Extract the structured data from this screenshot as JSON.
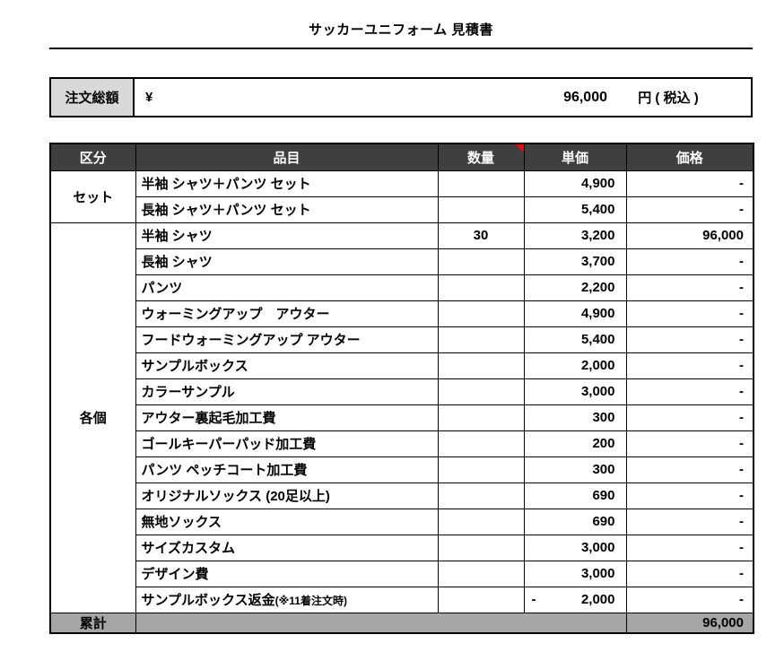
{
  "title": "サッカーユニフォーム 見積書",
  "summary": {
    "label": "注文総額",
    "currency": "¥",
    "amount": "96,000",
    "suffix": "円 ( 税込 )"
  },
  "table": {
    "headers": {
      "category": "区分",
      "item": "品目",
      "qty": "数量",
      "unit_price": "単価",
      "price": "価格"
    },
    "comment_marker_on": "数量",
    "groups": [
      {
        "label": "セット",
        "rows": [
          {
            "item": "半袖 シャツ＋パンツ セット",
            "qty": "",
            "unit_price": "4,900",
            "price": "-"
          },
          {
            "item": "長袖 シャツ＋パンツ セット",
            "qty": "",
            "unit_price": "5,400",
            "price": "-"
          }
        ]
      },
      {
        "label": "各個",
        "rows": [
          {
            "item": "半袖 シャツ",
            "qty": "30",
            "unit_price": "3,200",
            "price": "96,000"
          },
          {
            "item": "長袖 シャツ",
            "qty": "",
            "unit_price": "3,700",
            "price": "-"
          },
          {
            "item": "パンツ",
            "qty": "",
            "unit_price": "2,200",
            "price": "-"
          },
          {
            "item": "ウォーミングアップ　アウター",
            "qty": "",
            "unit_price": "4,900",
            "price": "-"
          },
          {
            "item": "フードウォーミングアップ アウター",
            "qty": "",
            "unit_price": "5,400",
            "price": "-"
          },
          {
            "item": "サンプルボックス",
            "qty": "",
            "unit_price": "2,000",
            "price": "-"
          },
          {
            "item": "カラーサンプル",
            "qty": "",
            "unit_price": "3,000",
            "price": "-"
          },
          {
            "item": "アウター裏起毛加工費",
            "qty": "",
            "unit_price": "300",
            "price": "-"
          },
          {
            "item": "ゴールキーパーパッド加工費",
            "qty": "",
            "unit_price": "200",
            "price": "-"
          },
          {
            "item": "パンツ ペッチコート加工費",
            "qty": "",
            "unit_price": "300",
            "price": "-"
          },
          {
            "item": "オリジナルソックス (20足以上)",
            "qty": "",
            "unit_price": "690",
            "price": "-"
          },
          {
            "item": "無地ソックス",
            "qty": "",
            "unit_price": "690",
            "price": "-"
          },
          {
            "item": "サイズカスタム",
            "qty": "",
            "unit_price": "3,000",
            "price": "-"
          },
          {
            "item": "デザイン費",
            "qty": "",
            "unit_price": "3,000",
            "price": "-"
          },
          {
            "item": "サンプルボックス返金",
            "note": "(※11着注文時)",
            "qty": "",
            "unit_price_sign": "-",
            "unit_price": "2,000",
            "price": "-"
          }
        ]
      }
    ],
    "footer": {
      "label": "累計",
      "price": "96,000"
    }
  },
  "colors": {
    "header_bg": "#3f3f3f",
    "header_text": "#ffffff",
    "group_bg": "#d9d9d9",
    "footer_bg": "#a6a6a6",
    "border": "#000000",
    "comment_marker": "#ff0000",
    "page_bg": "#ffffff"
  }
}
